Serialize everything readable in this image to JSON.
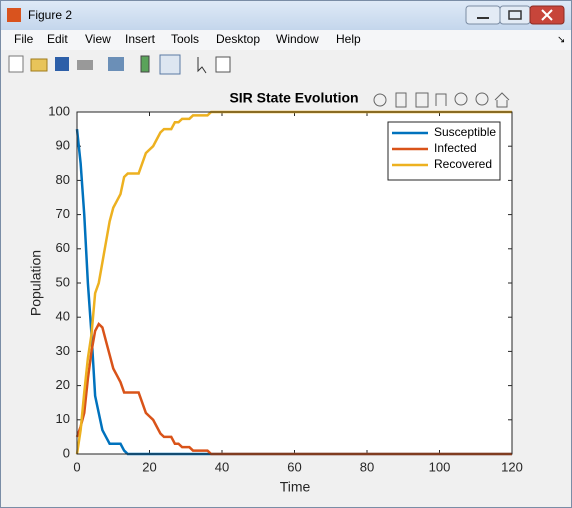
{
  "window": {
    "title": "Figure 2",
    "menu": [
      "File",
      "Edit",
      "View",
      "Insert",
      "Tools",
      "Desktop",
      "Window",
      "Help"
    ]
  },
  "chart_data": {
    "type": "line",
    "title": "SIR State Evolution",
    "x_label": "Time",
    "y_label": "Population",
    "x": [
      0,
      1,
      2,
      3,
      4,
      5,
      6,
      7,
      8,
      9,
      10,
      11,
      12,
      13,
      14,
      15,
      16,
      17,
      18,
      19,
      20,
      21,
      22,
      23,
      24,
      25,
      26,
      27,
      28,
      29,
      30,
      31,
      32,
      33,
      34,
      35,
      36,
      37,
      38,
      120
    ],
    "series": [
      {
        "name": "Susceptible",
        "color": "#0072BD",
        "values": [
          95,
          85,
          70,
          50,
          35,
          17,
          12,
          7,
          5,
          3,
          3,
          3,
          3,
          1,
          0,
          0,
          0,
          0,
          0,
          0,
          0,
          0,
          0,
          0,
          0,
          0,
          0,
          0,
          0,
          0,
          0,
          0,
          0,
          0,
          0,
          0,
          0,
          0,
          0,
          0
        ]
      },
      {
        "name": "Infected",
        "color": "#D95319",
        "values": [
          5,
          8,
          12,
          22,
          30,
          36,
          38,
          37,
          33,
          29,
          25,
          23,
          21,
          18,
          18,
          18,
          18,
          18,
          15,
          12,
          11,
          10,
          8,
          6,
          5,
          5,
          5,
          3,
          3,
          2,
          2,
          2,
          1,
          1,
          1,
          1,
          1,
          0,
          0,
          0
        ]
      },
      {
        "name": "Recovered",
        "color": "#EDB120",
        "values": [
          0,
          7,
          18,
          28,
          35,
          47,
          50,
          56,
          62,
          68,
          72,
          74,
          76,
          81,
          82,
          82,
          82,
          82,
          85,
          88,
          89,
          90,
          92,
          94,
          95,
          95,
          95,
          97,
          97,
          98,
          98,
          98,
          99,
          99,
          99,
          99,
          99,
          100,
          100,
          100
        ]
      }
    ],
    "xlim": [
      0,
      120
    ],
    "xticks": [
      0,
      20,
      40,
      60,
      80,
      100,
      120
    ],
    "ylim": [
      0,
      100
    ],
    "yticks": [
      0,
      10,
      20,
      30,
      40,
      50,
      60,
      70,
      80,
      90,
      100
    ],
    "legend": "northeast"
  }
}
